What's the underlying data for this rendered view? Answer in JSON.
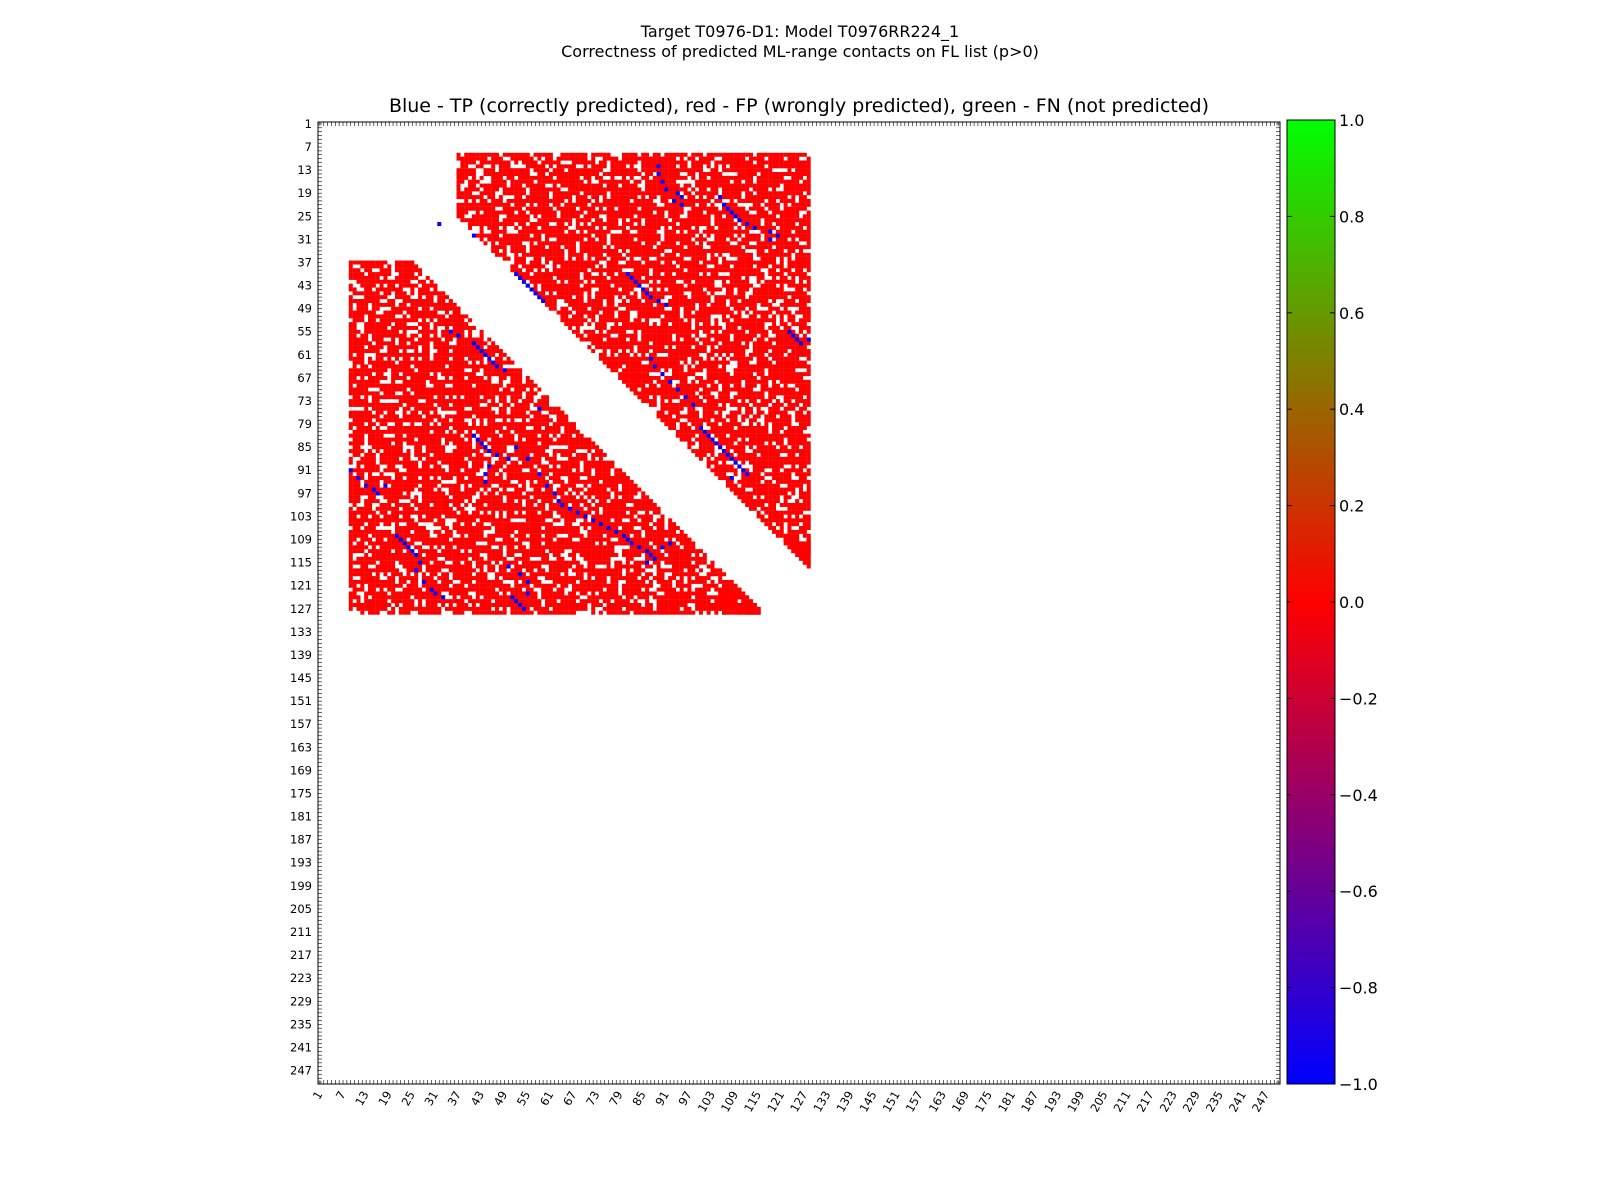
{
  "chart_data": {
    "type": "heatmap",
    "title": "Blue - TP (correctly predicted), red - FP (wrongly predicted), green - FN (not predicted)",
    "suptitle": [
      "Target T0976-D1: Model T0976RR224_1",
      "Correctness of predicted ML-range contacts on FL list (p>0)"
    ],
    "xlabel": "",
    "ylabel": "",
    "xlim": [
      1,
      250
    ],
    "ylim": [
      1,
      250
    ],
    "tick_labels": [
      1,
      7,
      13,
      19,
      25,
      31,
      37,
      43,
      49,
      55,
      61,
      67,
      73,
      79,
      85,
      91,
      97,
      103,
      109,
      115,
      121,
      127,
      133,
      139,
      145,
      151,
      157,
      163,
      169,
      175,
      181,
      187,
      193,
      199,
      205,
      211,
      217,
      223,
      229,
      235,
      241,
      247
    ],
    "colorbar": {
      "min": -1.0,
      "max": 1.0,
      "stops": [
        "#0000ff",
        "#ff0000",
        "#00ff00"
      ],
      "tick_labels": [
        "1.0",
        "0.8",
        "0.6",
        "0.4",
        "0.2",
        "0.0",
        "−0.2",
        "−0.4",
        "−0.6",
        "−0.8",
        "−1.0"
      ]
    },
    "legend": {
      "TP": {
        "value": -1.0,
        "color": "#0000ff"
      },
      "FP": {
        "value": 0.0,
        "color": "#ff0000"
      },
      "FN": {
        "value": 1.0,
        "color": "#00ff00"
      }
    },
    "fp_regions": [
      {
        "i": [
          9,
          128
        ],
        "j": [
          37,
          128
        ]
      },
      {
        "i": [
          37,
          128
        ],
        "j": [
          9,
          37
        ]
      },
      {
        "i": [
          109,
          128
        ],
        "j": [
          122,
          128
        ]
      },
      {
        "i": [
          122,
          128
        ],
        "j": [
          105,
          122
        ]
      }
    ],
    "tp_contacts": [
      [
        12,
        89
      ],
      [
        14,
        89
      ],
      [
        16,
        90
      ],
      [
        18,
        91
      ],
      [
        19,
        94
      ],
      [
        20,
        95
      ],
      [
        21,
        93
      ],
      [
        22,
        95
      ],
      [
        20,
        105
      ],
      [
        22,
        106
      ],
      [
        23,
        107
      ],
      [
        24,
        108
      ],
      [
        25,
        109
      ],
      [
        26,
        110
      ],
      [
        27,
        112
      ],
      [
        28,
        114
      ],
      [
        29,
        118
      ],
      [
        31,
        118
      ],
      [
        30,
        120
      ],
      [
        40,
        52
      ],
      [
        41,
        53
      ],
      [
        42,
        54
      ],
      [
        43,
        55
      ],
      [
        44,
        56
      ],
      [
        45,
        57
      ],
      [
        46,
        58
      ],
      [
        47,
        59
      ],
      [
        40,
        81
      ],
      [
        41,
        82
      ],
      [
        42,
        83
      ],
      [
        43,
        84
      ],
      [
        44,
        85
      ],
      [
        45,
        86
      ],
      [
        46,
        87
      ],
      [
        47,
        89
      ],
      [
        48,
        91
      ],
      [
        55,
        123
      ],
      [
        56,
        124
      ],
      [
        57,
        125
      ],
      [
        58,
        126
      ],
      [
        57,
        128
      ],
      [
        55,
        35
      ],
      [
        56,
        37
      ],
      [
        58,
        41
      ],
      [
        59,
        42
      ],
      [
        60,
        43
      ],
      [
        61,
        44
      ],
      [
        62,
        45
      ],
      [
        63,
        46
      ],
      [
        64,
        47
      ],
      [
        65,
        49
      ],
      [
        62,
        87
      ],
      [
        64,
        88
      ],
      [
        66,
        90
      ],
      [
        68,
        92
      ],
      [
        70,
        94
      ],
      [
        72,
        96
      ],
      [
        74,
        98
      ],
      [
        80,
        100
      ],
      [
        81,
        101
      ],
      [
        82,
        102
      ],
      [
        83,
        103
      ],
      [
        84,
        104
      ],
      [
        85,
        105
      ],
      [
        86,
        106
      ],
      [
        87,
        107
      ],
      [
        88,
        108
      ],
      [
        89,
        109
      ],
      [
        90,
        110
      ],
      [
        91,
        111
      ],
      [
        92,
        112
      ],
      [
        93,
        108
      ],
      [
        82,
        41
      ],
      [
        83,
        42
      ],
      [
        84,
        43
      ],
      [
        85,
        44
      ],
      [
        86,
        45
      ],
      [
        87,
        47
      ],
      [
        88,
        50
      ],
      [
        90,
        45
      ],
      [
        92,
        44
      ],
      [
        94,
        44
      ],
      [
        91,
        9
      ],
      [
        93,
        11
      ],
      [
        95,
        13
      ],
      [
        96,
        15
      ],
      [
        97,
        16
      ],
      [
        95,
        18
      ],
      [
        75,
        58
      ],
      [
        85,
        52
      ],
      [
        88,
        55
      ],
      [
        92,
        58
      ],
      [
        95,
        60
      ],
      [
        97,
        62
      ],
      [
        99,
        63
      ],
      [
        100,
        64
      ],
      [
        101,
        66
      ],
      [
        102,
        68
      ],
      [
        103,
        70
      ],
      [
        104,
        72
      ],
      [
        105,
        74
      ],
      [
        106,
        76
      ],
      [
        107,
        78
      ],
      [
        108,
        80
      ],
      [
        109,
        81
      ],
      [
        110,
        82
      ],
      [
        111,
        84
      ],
      [
        112,
        86
      ],
      [
        113,
        87
      ],
      [
        114,
        88
      ],
      [
        115,
        86
      ],
      [
        111,
        90
      ],
      [
        110,
        92
      ],
      [
        108,
        21
      ],
      [
        109,
        22
      ],
      [
        110,
        23
      ],
      [
        111,
        24
      ],
      [
        112,
        25
      ],
      [
        113,
        26
      ],
      [
        115,
        27
      ],
      [
        117,
        26
      ],
      [
        120,
        28
      ],
      [
        122,
        30
      ],
      [
        123,
        31
      ],
      [
        124,
        33
      ],
      [
        124,
        51
      ],
      [
        125,
        52
      ],
      [
        126,
        53
      ],
      [
        127,
        54
      ],
      [
        123,
        55
      ],
      [
        116,
        50
      ],
      [
        118,
        53
      ],
      [
        120,
        55
      ],
      [
        27,
        32
      ],
      [
        30,
        41
      ]
    ]
  }
}
